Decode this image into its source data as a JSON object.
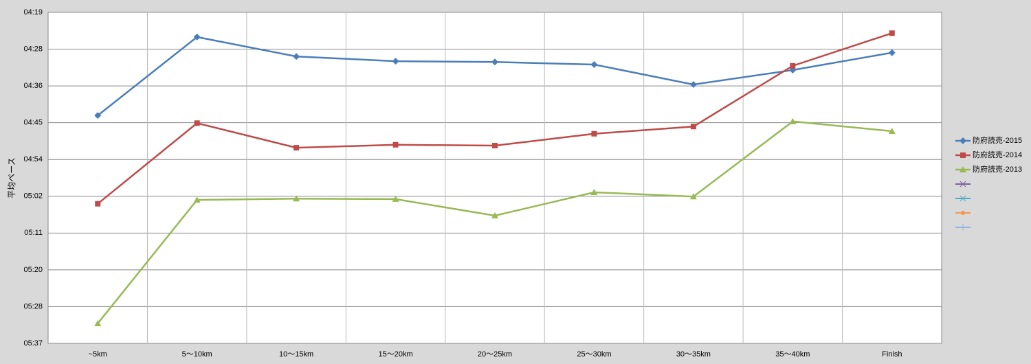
{
  "chart_data": {
    "type": "line",
    "y_label": "平均ペース",
    "categories": [
      "~5km",
      "5～10km",
      "10～15km",
      "15～20km",
      "20～25km",
      "25～30km",
      "30～35km",
      "35～40km",
      "Finish"
    ],
    "series": [
      {
        "name": "防府読売-2015",
        "color": "#4a7ebb",
        "marker": "diamond",
        "values": [
          283.3,
          264.8,
          269.4,
          270.5,
          270.7,
          271.3,
          276.0,
          272.6,
          268.5
        ]
      },
      {
        "name": "防府読売-2014",
        "color": "#be4b48",
        "marker": "square",
        "values": [
          304.1,
          285.1,
          290.9,
          290.2,
          290.4,
          287.6,
          285.9,
          271.6,
          263.9
        ]
      },
      {
        "name": "防府読売-2013",
        "color": "#98b954",
        "marker": "triangle",
        "values": [
          332.3,
          303.2,
          302.9,
          303.0,
          306.9,
          301.4,
          302.4,
          284.7,
          287.0
        ]
      }
    ],
    "ylim": [
      259,
      337
    ],
    "y_reversed": true,
    "yticks": [
      {
        "value": 259,
        "label": "04:19"
      },
      {
        "value": 267.67,
        "label": "04:28"
      },
      {
        "value": 276.33,
        "label": "04:36"
      },
      {
        "value": 285,
        "label": "04:45"
      },
      {
        "value": 293.67,
        "label": "04:54"
      },
      {
        "value": 302.33,
        "label": "05:02"
      },
      {
        "value": 311,
        "label": "05:11"
      },
      {
        "value": 319.67,
        "label": "05:20"
      },
      {
        "value": 328.33,
        "label": "05:28"
      },
      {
        "value": 337,
        "label": "05:37"
      }
    ],
    "grid": true,
    "legend": "right"
  }
}
